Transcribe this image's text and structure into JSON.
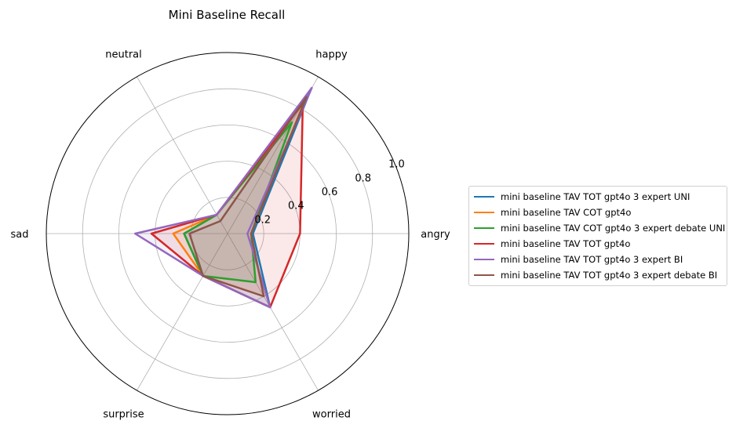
{
  "chart_data": {
    "type": "radar",
    "title": "Mini Baseline Recall",
    "categories": [
      "angry",
      "happy",
      "neutral",
      "sad",
      "surprise",
      "worried"
    ],
    "radial_ticks": [
      "0.2",
      "0.4",
      "0.6",
      "0.8",
      "1.0"
    ],
    "rlim": [
      0,
      1.0
    ],
    "grid": true,
    "legend_position": "right",
    "series": [
      {
        "name": "mini baseline TAV TOT gpt4o 3 expert UNI",
        "color": "#1f77b4",
        "values": [
          0.14,
          0.92,
          0.12,
          0.24,
          0.27,
          0.47
        ]
      },
      {
        "name": "mini baseline TAV COT gpt4o",
        "color": "#ff7f0e",
        "values": [
          0.13,
          0.86,
          0.12,
          0.3,
          0.27,
          0.4
        ]
      },
      {
        "name": "mini baseline TAV COT gpt4o 3 expert debate UNI",
        "color": "#2ca02c",
        "values": [
          0.13,
          0.71,
          0.12,
          0.24,
          0.27,
          0.31
        ]
      },
      {
        "name": "mini baseline TAV TOT gpt4o",
        "color": "#d62728",
        "values": [
          0.4,
          0.83,
          0.12,
          0.42,
          0.27,
          0.47
        ]
      },
      {
        "name": "mini baseline TAV TOT gpt4o 3 expert BI",
        "color": "#9467bd",
        "values": [
          0.11,
          0.93,
          0.12,
          0.51,
          0.27,
          0.47
        ]
      },
      {
        "name": "mini baseline TAV TOT gpt4o 3 expert debate BI",
        "color": "#8c564b",
        "values": [
          0.13,
          0.87,
          0.08,
          0.21,
          0.27,
          0.4
        ]
      }
    ]
  }
}
